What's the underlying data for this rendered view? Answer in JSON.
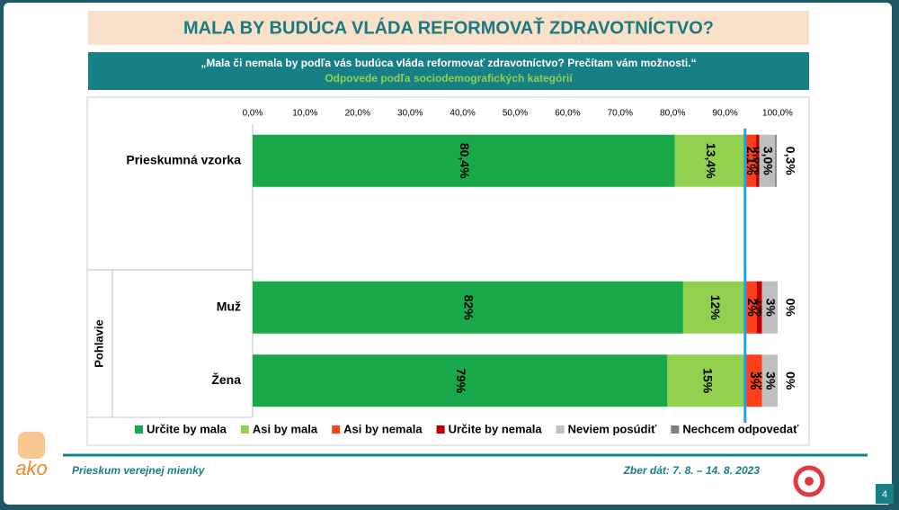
{
  "title": "MALA BY BUDÚCA VLÁDA REFORMOVAŤ ZDRAVOTNÍCTVO?",
  "question": "„Mala či nemala by podľa vás budúca vláda reformovať zdravotníctvo? Prečítam vám možnosti.“",
  "subtitle": "Odpovede podľa sociodemografických kategórií",
  "footer": {
    "left": "Prieskum verejnej mienky",
    "right": "Zber dát: 7. 8. – 14. 8. 2023",
    "page": "4",
    "logo": "ako"
  },
  "chart_data": {
    "type": "stacked_barh",
    "categories": [
      "Prieskumná vzorka",
      null,
      "Muž",
      "Žena"
    ],
    "group_label": "Pohlavie",
    "xlim": [
      0,
      100
    ],
    "xticks": [
      {
        "value": 0,
        "label": "0,0%"
      },
      {
        "value": 10,
        "label": "10,0%"
      },
      {
        "value": 20,
        "label": "20,0%"
      },
      {
        "value": 30,
        "label": "30,0%"
      },
      {
        "value": 40,
        "label": "40,0%"
      },
      {
        "value": 50,
        "label": "50,0%"
      },
      {
        "value": 60,
        "label": "60,0%"
      },
      {
        "value": 70,
        "label": "70,0%"
      },
      {
        "value": 80,
        "label": "80,0%"
      },
      {
        "value": 90,
        "label": "90,0%"
      },
      {
        "value": 100,
        "label": "100,0%"
      }
    ],
    "grid": false,
    "reference_x": 93.8,
    "reference_color": "#1aa3e8",
    "legend": "bottom",
    "series": [
      {
        "name": "Určite by mala",
        "color": "#19a84a",
        "values": [
          80.4,
          null,
          82,
          79
        ],
        "value_labels": [
          "80,4%",
          null,
          "82%",
          "79%"
        ]
      },
      {
        "name": "Asi by mala",
        "color": "#92d050",
        "values": [
          13.4,
          null,
          12,
          15
        ],
        "value_labels": [
          "13,4%",
          null,
          "12%",
          "15%"
        ]
      },
      {
        "name": "Asi by nemala",
        "color": "#ff3f1a",
        "values": [
          2.1,
          null,
          2,
          3
        ],
        "value_labels": [
          "2,1%",
          null,
          "2%",
          "3%"
        ]
      },
      {
        "name": "Určite by nemala",
        "color": "#c00000",
        "values": [
          0.6,
          null,
          1,
          0
        ],
        "value_labels": [
          "0,6%",
          null,
          "1%",
          "0%"
        ]
      },
      {
        "name": "Neviem posúdiť",
        "color": "#bfbfbf",
        "values": [
          3.0,
          null,
          3,
          3
        ],
        "value_labels": [
          "3,0%",
          null,
          "3%",
          "3%"
        ]
      },
      {
        "name": "Nechcem odpovedať",
        "color": "#7f7f7f",
        "values": [
          0.3,
          null,
          0,
          0
        ],
        "value_labels": [
          "0,3%",
          null,
          "0%",
          "0%"
        ]
      }
    ]
  }
}
